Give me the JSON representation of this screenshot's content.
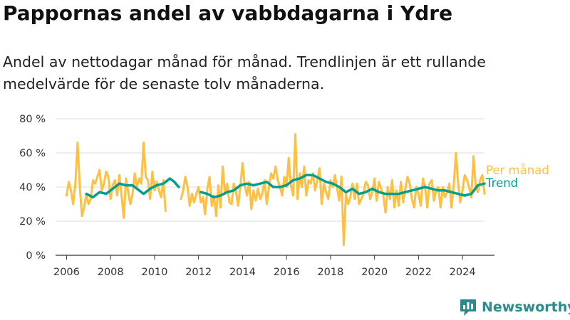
{
  "header": {
    "title": "Pappornas andel av vabbdagarna i Ydre",
    "subtitle": "Andel av nettodagar månad för månad. Trendlinjen är ett rullande medelvärde för de senaste tolv månaderna."
  },
  "brand": {
    "name": "Newsworthy",
    "icon": "newsworthy-logo-icon",
    "color": "#2a8a8c"
  },
  "colors": {
    "monthly": "#ffbf40",
    "trend": "#009e8c",
    "grid": "#dddddd",
    "axis": "#333333"
  },
  "chart_data": {
    "type": "line",
    "title": "Pappornas andel av vabbdagarna i Ydre",
    "xlabel": "",
    "ylabel": "",
    "ylim": [
      0,
      80
    ],
    "xlim": [
      2005.5,
      2025.0
    ],
    "yticks": [
      0,
      20,
      40,
      60,
      80
    ],
    "ytick_labels": [
      "0 %",
      "20 %",
      "40 %",
      "60 %",
      "80 %"
    ],
    "xticks": [
      2006,
      2008,
      2010,
      2012,
      2014,
      2016,
      2018,
      2020,
      2022,
      2024
    ],
    "xtick_labels": [
      "2006",
      "2008",
      "2010",
      "2012",
      "2014",
      "2016",
      "2018",
      "2020",
      "2022",
      "2024"
    ],
    "grid": "horizontal",
    "legend": "right, at line ends",
    "series": [
      {
        "name": "Per månad",
        "color": "#ffbf40",
        "points": [
          [
            2006.0,
            35
          ],
          [
            2006.1,
            43
          ],
          [
            2006.2,
            38
          ],
          [
            2006.3,
            30
          ],
          [
            2006.4,
            42
          ],
          [
            2006.5,
            66
          ],
          [
            2006.6,
            40
          ],
          [
            2006.7,
            23
          ],
          [
            2006.8,
            28
          ],
          [
            2006.9,
            36
          ],
          [
            2007.0,
            30
          ],
          [
            2007.1,
            33
          ],
          [
            2007.2,
            44
          ],
          [
            2007.3,
            42
          ],
          [
            2007.4,
            46
          ],
          [
            2007.5,
            50
          ],
          [
            2007.6,
            38
          ],
          [
            2007.7,
            42
          ],
          [
            2007.8,
            49
          ],
          [
            2007.9,
            46
          ],
          [
            2008.0,
            33
          ],
          [
            2008.1,
            41
          ],
          [
            2008.2,
            44
          ],
          [
            2008.3,
            35
          ],
          [
            2008.4,
            47
          ],
          [
            2008.5,
            35
          ],
          [
            2008.6,
            22
          ],
          [
            2008.7,
            45
          ],
          [
            2008.8,
            37
          ],
          [
            2008.9,
            30
          ],
          [
            2009.0,
            36
          ],
          [
            2009.1,
            48
          ],
          [
            2009.2,
            40
          ],
          [
            2009.3,
            45
          ],
          [
            2009.4,
            42
          ],
          [
            2009.5,
            66
          ],
          [
            2009.6,
            46
          ],
          [
            2009.7,
            44
          ],
          [
            2009.8,
            33
          ],
          [
            2009.9,
            49
          ],
          [
            2010.0,
            38
          ],
          [
            2010.1,
            43
          ],
          [
            2010.2,
            38
          ],
          [
            2010.3,
            34
          ],
          [
            2010.4,
            44
          ],
          [
            2010.5,
            26
          ],
          [
            2011.2,
            33
          ],
          [
            2011.3,
            38
          ],
          [
            2011.4,
            46
          ],
          [
            2011.5,
            40
          ],
          [
            2011.6,
            29
          ],
          [
            2011.7,
            36
          ],
          [
            2011.8,
            31
          ],
          [
            2011.9,
            36
          ],
          [
            2012.0,
            40
          ],
          [
            2012.1,
            31
          ],
          [
            2012.2,
            34
          ],
          [
            2012.3,
            24
          ],
          [
            2012.4,
            39
          ],
          [
            2012.5,
            46
          ],
          [
            2012.6,
            29
          ],
          [
            2012.7,
            35
          ],
          [
            2012.8,
            23
          ],
          [
            2012.9,
            41
          ],
          [
            2013.0,
            28
          ],
          [
            2013.1,
            52
          ],
          [
            2013.2,
            36
          ],
          [
            2013.3,
            42
          ],
          [
            2013.4,
            31
          ],
          [
            2013.5,
            30
          ],
          [
            2013.6,
            42
          ],
          [
            2013.7,
            38
          ],
          [
            2013.8,
            29
          ],
          [
            2013.9,
            40
          ],
          [
            2014.0,
            54
          ],
          [
            2014.1,
            41
          ],
          [
            2014.2,
            35
          ],
          [
            2014.3,
            43
          ],
          [
            2014.4,
            27
          ],
          [
            2014.5,
            38
          ],
          [
            2014.6,
            32
          ],
          [
            2014.7,
            39
          ],
          [
            2014.8,
            33
          ],
          [
            2014.9,
            36
          ],
          [
            2015.0,
            44
          ],
          [
            2015.1,
            30
          ],
          [
            2015.2,
            40
          ],
          [
            2015.3,
            48
          ],
          [
            2015.4,
            45
          ],
          [
            2015.5,
            52
          ],
          [
            2015.6,
            44
          ],
          [
            2015.7,
            40
          ],
          [
            2015.8,
            35
          ],
          [
            2015.9,
            46
          ],
          [
            2016.0,
            40
          ],
          [
            2016.1,
            57
          ],
          [
            2016.2,
            41
          ],
          [
            2016.3,
            35
          ],
          [
            2016.4,
            71
          ],
          [
            2016.5,
            33
          ],
          [
            2016.6,
            48
          ],
          [
            2016.7,
            40
          ],
          [
            2016.8,
            52
          ],
          [
            2016.9,
            35
          ],
          [
            2017.0,
            44
          ],
          [
            2017.1,
            42
          ],
          [
            2017.2,
            48
          ],
          [
            2017.3,
            38
          ],
          [
            2017.4,
            44
          ],
          [
            2017.5,
            51
          ],
          [
            2017.6,
            30
          ],
          [
            2017.7,
            42
          ],
          [
            2017.8,
            37
          ],
          [
            2017.9,
            33
          ],
          [
            2018.0,
            44
          ],
          [
            2018.1,
            40
          ],
          [
            2018.2,
            47
          ],
          [
            2018.3,
            39
          ],
          [
            2018.4,
            32
          ],
          [
            2018.5,
            46
          ],
          [
            2018.6,
            6
          ],
          [
            2018.7,
            36
          ],
          [
            2018.8,
            30
          ],
          [
            2018.9,
            34
          ],
          [
            2019.0,
            42
          ],
          [
            2019.1,
            33
          ],
          [
            2019.2,
            42
          ],
          [
            2019.3,
            30
          ],
          [
            2019.4,
            33
          ],
          [
            2019.5,
            36
          ],
          [
            2019.6,
            43
          ],
          [
            2019.7,
            41
          ],
          [
            2019.8,
            33
          ],
          [
            2019.9,
            37
          ],
          [
            2020.0,
            45
          ],
          [
            2020.1,
            32
          ],
          [
            2020.2,
            43
          ],
          [
            2020.3,
            39
          ],
          [
            2020.4,
            35
          ],
          [
            2020.5,
            25
          ],
          [
            2020.6,
            40
          ],
          [
            2020.7,
            33
          ],
          [
            2020.8,
            44
          ],
          [
            2020.9,
            28
          ],
          [
            2021.0,
            38
          ],
          [
            2021.1,
            29
          ],
          [
            2021.2,
            43
          ],
          [
            2021.3,
            31
          ],
          [
            2021.4,
            39
          ],
          [
            2021.5,
            46
          ],
          [
            2021.6,
            42
          ],
          [
            2021.7,
            33
          ],
          [
            2021.8,
            28
          ],
          [
            2021.9,
            40
          ],
          [
            2022.0,
            36
          ],
          [
            2022.1,
            29
          ],
          [
            2022.2,
            45
          ],
          [
            2022.3,
            40
          ],
          [
            2022.4,
            28
          ],
          [
            2022.5,
            42
          ],
          [
            2022.6,
            44
          ],
          [
            2022.7,
            32
          ],
          [
            2022.8,
            38
          ],
          [
            2022.9,
            40
          ],
          [
            2023.0,
            28
          ],
          [
            2023.1,
            40
          ],
          [
            2023.2,
            34
          ],
          [
            2023.3,
            37
          ],
          [
            2023.4,
            42
          ],
          [
            2023.5,
            28
          ],
          [
            2023.6,
            41
          ],
          [
            2023.7,
            60
          ],
          [
            2023.8,
            42
          ],
          [
            2023.9,
            31
          ],
          [
            2024.0,
            38
          ],
          [
            2024.1,
            47
          ],
          [
            2024.2,
            44
          ],
          [
            2024.3,
            40
          ],
          [
            2024.4,
            34
          ],
          [
            2024.5,
            58
          ],
          [
            2024.6,
            40
          ],
          [
            2024.7,
            37
          ],
          [
            2024.8,
            44
          ],
          [
            2024.9,
            47
          ],
          [
            2025.0,
            36
          ]
        ]
      },
      {
        "name": "Trend",
        "color": "#009e8c",
        "points": [
          [
            2006.9,
            36
          ],
          [
            2007.2,
            34
          ],
          [
            2007.5,
            37
          ],
          [
            2007.8,
            36
          ],
          [
            2008.1,
            39
          ],
          [
            2008.4,
            42
          ],
          [
            2008.7,
            41
          ],
          [
            2009.0,
            41
          ],
          [
            2009.3,
            38
          ],
          [
            2009.5,
            36
          ],
          [
            2009.8,
            39
          ],
          [
            2010.1,
            41
          ],
          [
            2010.4,
            42
          ],
          [
            2010.7,
            45
          ],
          [
            2010.9,
            43
          ],
          [
            2011.1,
            40
          ],
          [
            2012.1,
            37
          ],
          [
            2012.4,
            36
          ],
          [
            2012.7,
            34
          ],
          [
            2013.0,
            35
          ],
          [
            2013.3,
            37
          ],
          [
            2013.6,
            38
          ],
          [
            2013.9,
            41
          ],
          [
            2014.2,
            42
          ],
          [
            2014.5,
            41
          ],
          [
            2014.8,
            42
          ],
          [
            2015.1,
            43
          ],
          [
            2015.4,
            40
          ],
          [
            2015.7,
            40
          ],
          [
            2016.0,
            41
          ],
          [
            2016.3,
            44
          ],
          [
            2016.6,
            45
          ],
          [
            2016.9,
            47
          ],
          [
            2017.2,
            47
          ],
          [
            2017.5,
            45
          ],
          [
            2017.8,
            43
          ],
          [
            2018.1,
            42
          ],
          [
            2018.4,
            40
          ],
          [
            2018.7,
            37
          ],
          [
            2019.0,
            39
          ],
          [
            2019.3,
            36
          ],
          [
            2019.6,
            37
          ],
          [
            2019.9,
            39
          ],
          [
            2020.2,
            37
          ],
          [
            2020.5,
            36
          ],
          [
            2020.8,
            36
          ],
          [
            2021.1,
            36
          ],
          [
            2021.4,
            37
          ],
          [
            2021.7,
            38
          ],
          [
            2022.0,
            39
          ],
          [
            2022.3,
            40
          ],
          [
            2022.6,
            39
          ],
          [
            2022.9,
            38
          ],
          [
            2023.2,
            38
          ],
          [
            2023.5,
            37
          ],
          [
            2023.8,
            36
          ],
          [
            2024.1,
            35
          ],
          [
            2024.4,
            36
          ],
          [
            2024.7,
            41
          ],
          [
            2025.0,
            42
          ]
        ]
      }
    ]
  }
}
